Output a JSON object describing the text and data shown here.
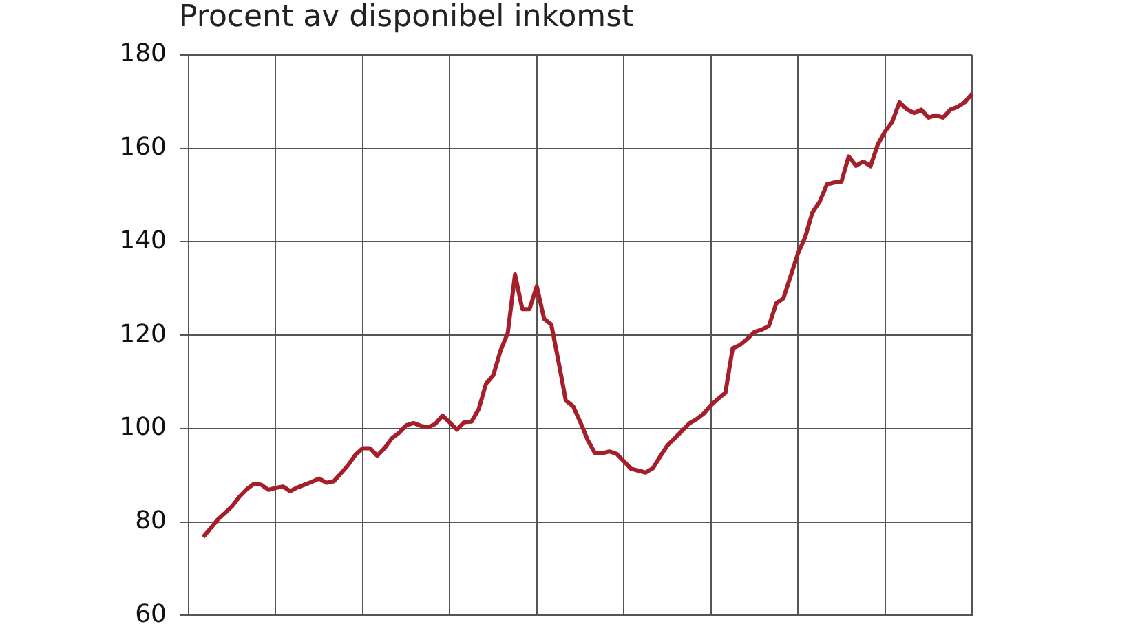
{
  "chart_data": {
    "type": "line",
    "title": "Procent av disponibel inkomst",
    "categories": [
      null,
      null,
      null,
      null,
      null,
      null,
      null,
      null,
      null,
      null,
      null,
      null,
      null,
      null,
      null,
      null,
      null,
      null,
      null,
      null,
      null,
      null,
      null,
      null,
      null,
      null,
      null,
      null,
      null,
      null,
      null,
      null,
      null,
      null,
      null,
      null,
      null,
      null,
      null,
      null,
      null,
      null,
      null,
      null,
      null,
      null,
      null,
      null,
      null,
      null,
      null,
      null,
      null,
      null,
      null,
      null,
      null,
      null,
      null,
      null,
      null,
      null,
      null,
      null,
      null,
      null,
      null,
      null,
      null,
      null,
      null,
      null,
      null,
      null,
      null,
      null,
      null,
      null,
      null,
      null,
      null,
      null,
      null,
      null,
      null,
      null,
      null,
      null,
      null,
      null,
      null,
      null,
      null,
      null,
      null,
      null,
      null,
      null,
      null,
      null,
      null,
      null,
      null,
      null,
      null,
      null,
      null,
      null,
      null
    ],
    "values": [
      null,
      null,
      76.8,
      78.6,
      80.5,
      81.9,
      83.4,
      85.4,
      87,
      88.2,
      88,
      86.9,
      87.3,
      87.6,
      86.6,
      87.4,
      88,
      88.6,
      89.3,
      88.4,
      88.7,
      90.4,
      92.2,
      94.4,
      95.8,
      95.8,
      94.2,
      95.8,
      97.9,
      99.1,
      100.7,
      101.2,
      100.6,
      100.3,
      101,
      102.8,
      101.3,
      99.8,
      101.4,
      101.5,
      104.2,
      109.6,
      111.4,
      116.7,
      120.5,
      133,
      125.6,
      125.6,
      130.5,
      123.5,
      122.3,
      114.3,
      106,
      104.8,
      101.4,
      97.6,
      94.8,
      94.7,
      95.1,
      94.6,
      93,
      91.4,
      91,
      90.6,
      91.5,
      94,
      96.4,
      97.9,
      99.5,
      101.1,
      102,
      103.2,
      105,
      106.4,
      107.7,
      117.2,
      117.9,
      119.2,
      120.7,
      121.2,
      122,
      126.8,
      127.9,
      132.7,
      137.5,
      141,
      146.3,
      148.6,
      152.3,
      152.7,
      152.9,
      158.3,
      156.3,
      157.2,
      156.2,
      160.8,
      163.6,
      165.7,
      169.9,
      168.4,
      167.6,
      168.3,
      166.6,
      167.1,
      166.6,
      168.3,
      168.9,
      169.9,
      171.7
    ],
    "color": "#a51f2a",
    "ylim": [
      60,
      180
    ],
    "yticks": [
      60,
      80,
      100,
      120,
      140,
      160,
      180
    ],
    "grid": true,
    "tick_labels": "y",
    "legend": false
  }
}
